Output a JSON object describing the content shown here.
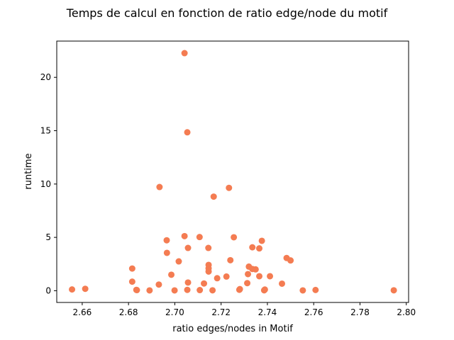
{
  "chart_data": {
    "type": "scatter",
    "title": "Temps de calcul en fonction de ratio edge/node du motif",
    "xlabel": "ratio edges/nodes in Motif",
    "ylabel": "runtime",
    "xlim": [
      2.649,
      2.801
    ],
    "ylim": [
      -1.1,
      23.4
    ],
    "xticks": [
      2.66,
      2.68,
      2.7,
      2.72,
      2.74,
      2.76,
      2.78,
      2.8
    ],
    "xtick_labels": [
      "2.66",
      "2.68",
      "2.70",
      "2.72",
      "2.74",
      "2.76",
      "2.78",
      "2.80"
    ],
    "yticks": [
      0,
      5,
      10,
      15,
      20
    ],
    "ytick_labels": [
      "0",
      "5",
      "10",
      "15",
      "20"
    ],
    "grid": false,
    "marker_color": "#f47c52",
    "series": [
      {
        "points": [
          [
            2.6556,
            0.12
          ],
          [
            2.6613,
            0.18
          ],
          [
            2.6816,
            2.08
          ],
          [
            2.6816,
            0.85
          ],
          [
            2.6834,
            0.08
          ],
          [
            2.6836,
            0.06
          ],
          [
            2.6891,
            0.03
          ],
          [
            2.6931,
            0.58
          ],
          [
            2.6934,
            9.72
          ],
          [
            2.6965,
            4.73
          ],
          [
            2.6966,
            3.55
          ],
          [
            2.6985,
            1.5
          ],
          [
            2.6999,
            0.03
          ],
          [
            2.7017,
            2.75
          ],
          [
            2.7042,
            22.27
          ],
          [
            2.7042,
            5.12
          ],
          [
            2.7054,
            14.85
          ],
          [
            2.7057,
            4.01
          ],
          [
            2.7057,
            0.77
          ],
          [
            2.7054,
            0.08
          ],
          [
            2.7107,
            5.03
          ],
          [
            2.7108,
            0.06
          ],
          [
            2.7126,
            0.68
          ],
          [
            2.7145,
            4.01
          ],
          [
            2.7146,
            2.42
          ],
          [
            2.7146,
            2.1
          ],
          [
            2.7146,
            1.8
          ],
          [
            2.7163,
            0.04
          ],
          [
            2.7168,
            8.82
          ],
          [
            2.7183,
            1.17
          ],
          [
            2.7223,
            1.33
          ],
          [
            2.7234,
            9.64
          ],
          [
            2.724,
            2.86
          ],
          [
            2.7255,
            5.01
          ],
          [
            2.7279,
            0.09
          ],
          [
            2.7281,
            0.15
          ],
          [
            2.7313,
            0.71
          ],
          [
            2.7316,
            1.56
          ],
          [
            2.732,
            2.26
          ],
          [
            2.7335,
            4.07
          ],
          [
            2.7335,
            2.04
          ],
          [
            2.7349,
            2.0
          ],
          [
            2.7365,
            1.36
          ],
          [
            2.7365,
            3.97
          ],
          [
            2.7376,
            4.68
          ],
          [
            2.7386,
            0.04
          ],
          [
            2.7389,
            0.11
          ],
          [
            2.7411,
            1.36
          ],
          [
            2.7463,
            0.66
          ],
          [
            2.7483,
            3.07
          ],
          [
            2.75,
            2.84
          ],
          [
            2.7553,
            0.03
          ],
          [
            2.7608,
            0.07
          ],
          [
            2.7946,
            0.04
          ]
        ]
      }
    ]
  }
}
